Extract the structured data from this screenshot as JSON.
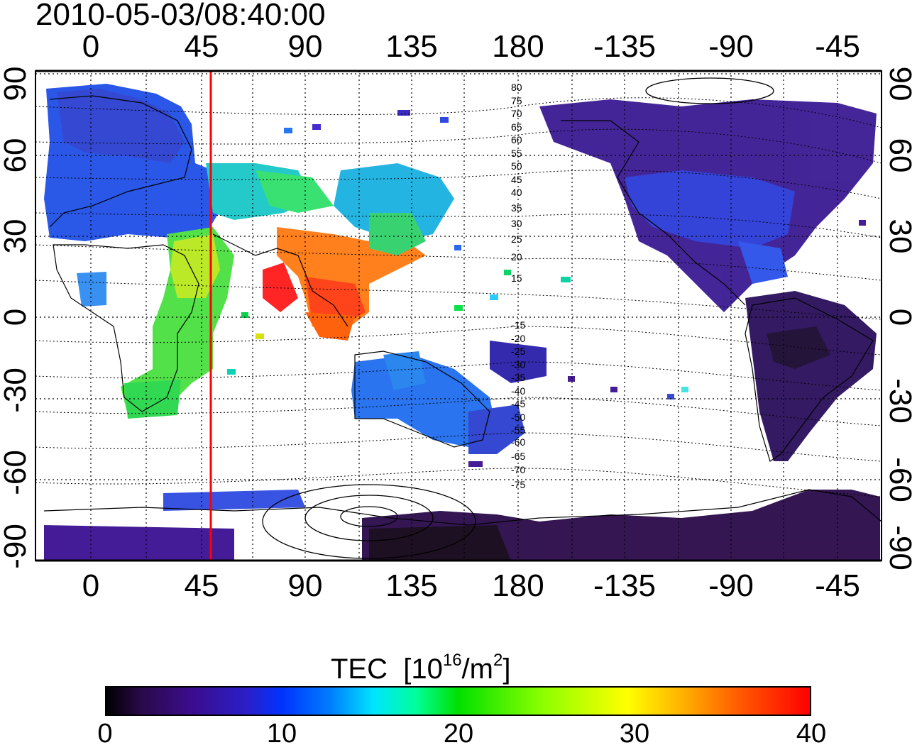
{
  "title": "2010-05-03/08:40:00",
  "axes": {
    "lon_labels": [
      "0",
      "45",
      "90",
      "135",
      "180",
      "-135",
      "-90",
      "-45"
    ],
    "lat_labels": [
      "90",
      "60",
      "30",
      "0",
      "-30",
      "-60",
      "-90"
    ]
  },
  "contour_labels": [
    "80",
    "75",
    "70",
    "65",
    "60",
    "55",
    "50",
    "45",
    "40",
    "35",
    "30",
    "25",
    "20",
    "15",
    "-15",
    "-20",
    "-25",
    "-30",
    "-35",
    "-40",
    "-45",
    "-50",
    "-55",
    "-60",
    "-65",
    "-70",
    "-75"
  ],
  "marker_line": {
    "longitude": 50,
    "color": "#ff0000"
  },
  "colorbar": {
    "label_main": "TEC",
    "label_unit_prefix": "[10",
    "label_unit_exp": "16",
    "label_unit_mid": "/m",
    "label_unit_exp2": "2",
    "label_unit_suffix": "]",
    "ticks": [
      "0",
      "10",
      "20",
      "30",
      "40"
    ],
    "range": [
      0,
      40
    ],
    "colors": [
      "#000000",
      "#3b0c8c",
      "#0033ff",
      "#00e5ff",
      "#00e000",
      "#ffff00",
      "#ff0000"
    ]
  },
  "map_regions": [
    {
      "name": "Europe",
      "tec_level": "blue"
    },
    {
      "name": "Africa",
      "tec_level": "green-yellow"
    },
    {
      "name": "Southeast Asia",
      "tec_level": "red"
    },
    {
      "name": "Australia",
      "tec_level": "blue"
    },
    {
      "name": "North America",
      "tec_level": "dark-blue"
    },
    {
      "name": "South America",
      "tec_level": "dark-purple"
    },
    {
      "name": "Antarctica",
      "tec_level": "dark-purple"
    }
  ]
}
